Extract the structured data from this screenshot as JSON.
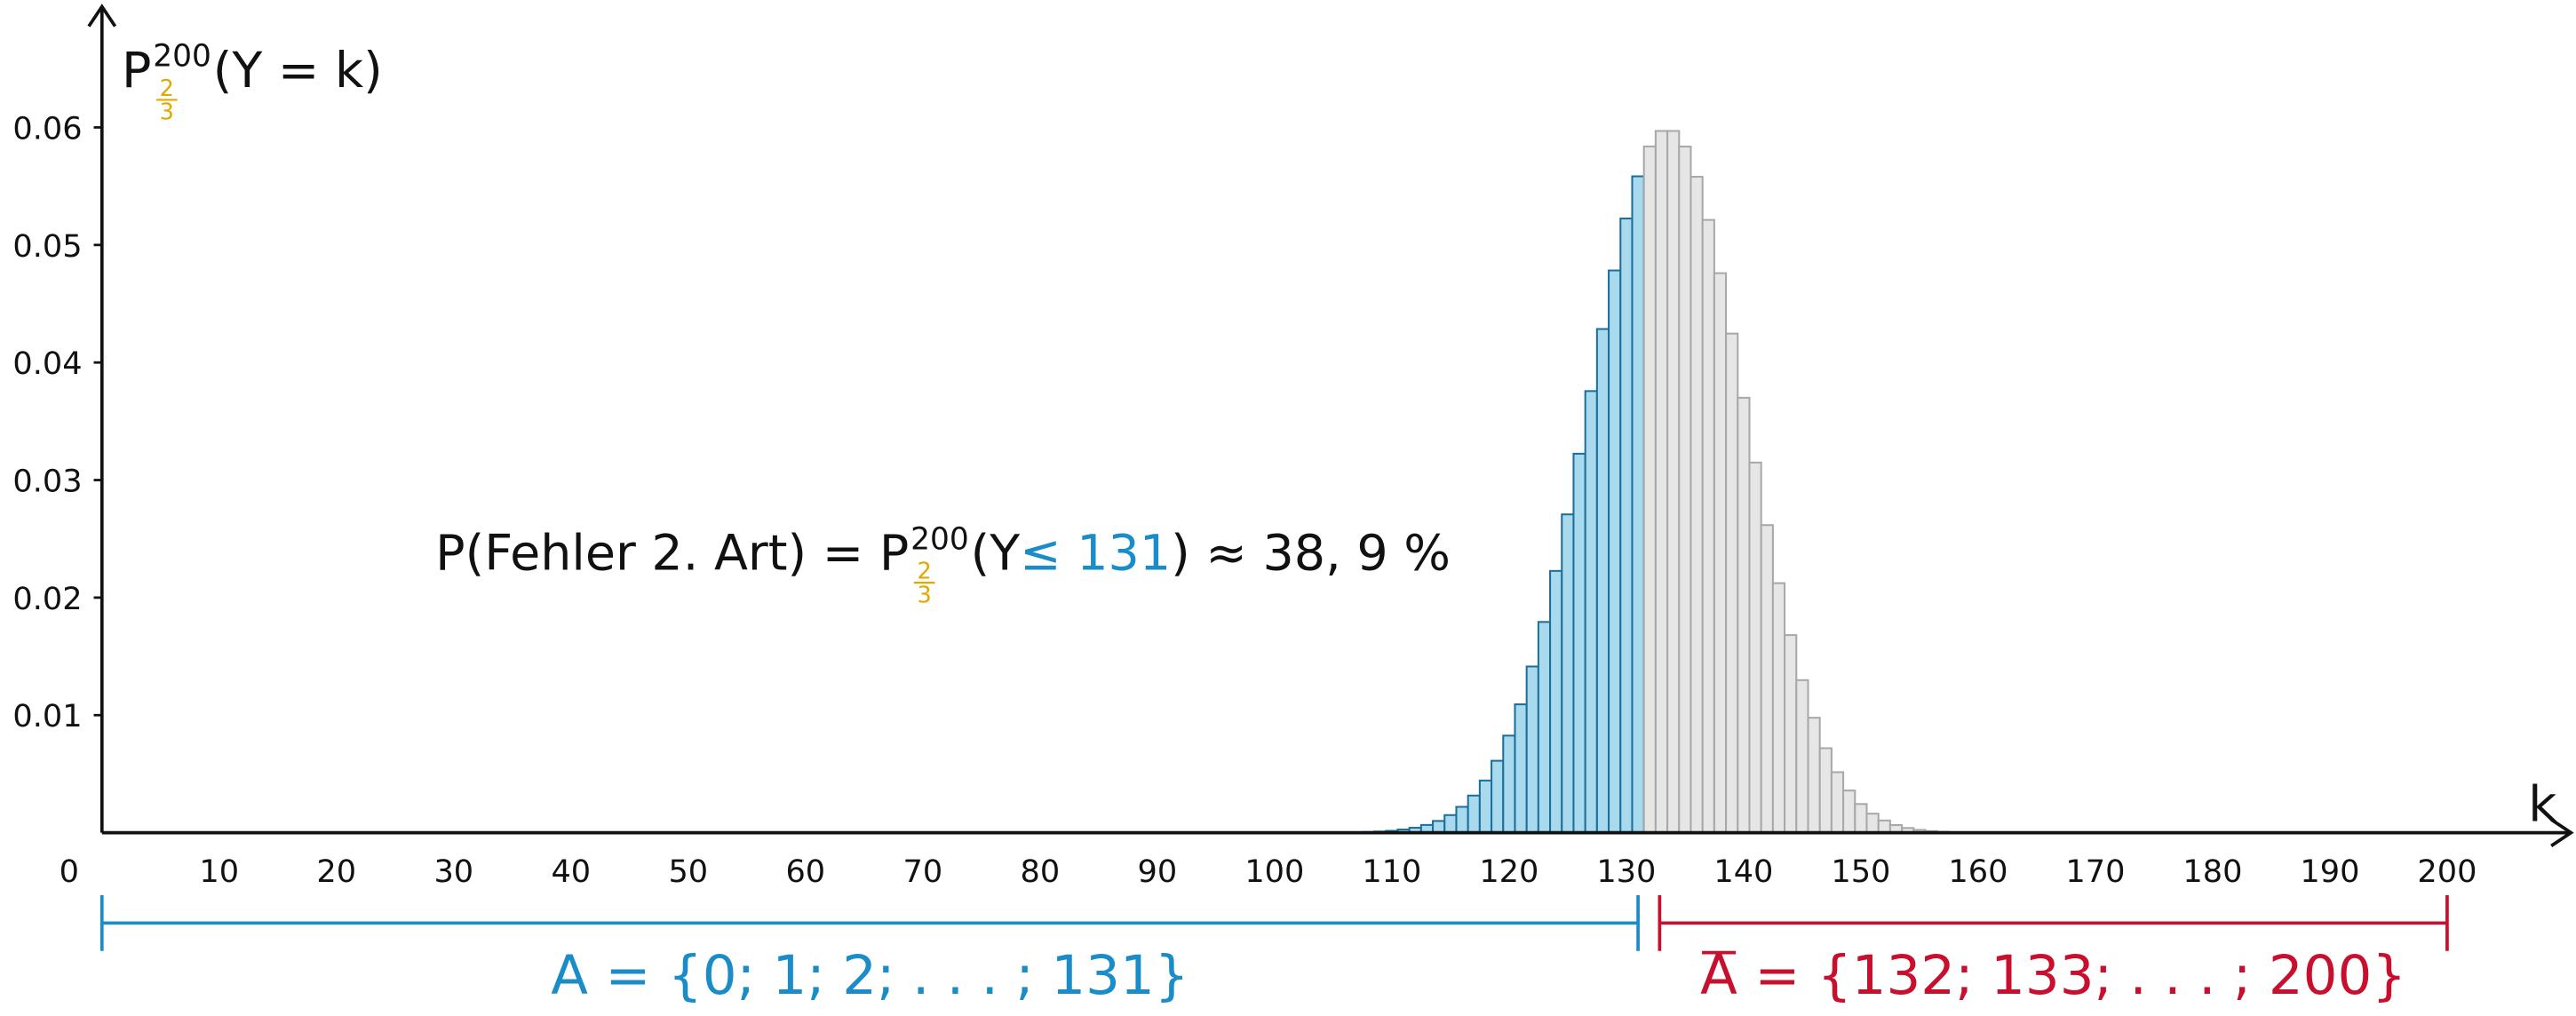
{
  "chart_data": {
    "type": "bar",
    "x_label": "k",
    "y_label": {
      "base": "P",
      "sup": "200",
      "frac_num": "2",
      "frac_den": "3",
      "rest": "(Y = k)"
    },
    "frac_color": "#e3a800",
    "annotation": {
      "pre": "P(Fehler 2. Art) = P",
      "sup": "200",
      "frac_num": "2",
      "frac_den": "3",
      "open": "(Y",
      "highlight": "≤ 131",
      "post": ") ≈ 38, 9 %",
      "highlight_color": "#1a8cc8"
    },
    "xlim": [
      0,
      210
    ],
    "ylim": [
      0,
      0.07
    ],
    "xticks": [
      0,
      10,
      20,
      30,
      40,
      50,
      60,
      70,
      80,
      90,
      100,
      110,
      120,
      130,
      140,
      150,
      160,
      170,
      180,
      190,
      200
    ],
    "yticks": [
      0.01,
      0.02,
      0.03,
      0.04,
      0.05,
      0.06
    ],
    "color": "#e6e6e6",
    "edge_color": "#a8a8a8",
    "x": [
      94,
      95,
      96,
      97,
      98,
      99,
      100,
      101,
      102,
      103,
      104,
      105,
      106,
      107,
      108,
      109,
      110,
      111,
      112,
      113,
      114,
      115,
      116,
      117,
      118,
      119,
      120,
      121,
      122,
      123,
      124,
      125,
      126,
      127,
      128,
      129,
      130,
      131,
      132,
      133,
      134,
      135,
      136,
      137,
      138,
      139,
      140,
      141,
      142,
      143,
      144,
      145,
      146,
      147,
      148,
      149,
      150,
      151,
      152,
      153,
      154,
      155,
      156,
      157,
      158,
      159,
      160,
      161,
      162,
      163,
      164,
      165,
      166,
      167,
      168
    ],
    "values": [
      0,
      0,
      0,
      0,
      0,
      0,
      0,
      0,
      0,
      0,
      0,
      1e-05,
      2e-05,
      3e-05,
      6e-05,
      0.0001,
      0.00016,
      0.00027,
      0.00042,
      0.00066,
      0.001,
      0.0015,
      0.0022,
      0.00316,
      0.00444,
      0.00612,
      0.00826,
      0.01092,
      0.01414,
      0.01793,
      0.02227,
      0.02708,
      0.03224,
      0.03757,
      0.04285,
      0.04783,
      0.05225,
      0.05584,
      0.05838,
      0.0597,
      0.0597,
      0.05837,
      0.0558,
      0.05213,
      0.0476,
      0.04246,
      0.037,
      0.03149,
      0.02617,
      0.02123,
      0.01681,
      0.01298,
      0.00978,
      0.00719,
      0.00515,
      0.00359,
      0.00244,
      0.00162,
      0.00104,
      0.00065,
      0.0004,
      0.00024,
      0.00014,
      8e-05,
      4e-05,
      2e-05,
      1e-05,
      0,
      0,
      0,
      0,
      0,
      0,
      0,
      0
    ],
    "regions": [
      {
        "label": "A",
        "label_rest": " = {0; 1; 2; . . . ; 131}",
        "overline": false,
        "start": 0,
        "end": 131,
        "color": "#1a8cc8",
        "bar_fill": "#a9d9ec",
        "bar_stroke": "#1a6f9c"
      },
      {
        "label": "A",
        "label_rest": " = {132; 133; . . . ; 200}",
        "overline": true,
        "start": 132,
        "end": 200,
        "color": "#c8102e"
      }
    ]
  }
}
